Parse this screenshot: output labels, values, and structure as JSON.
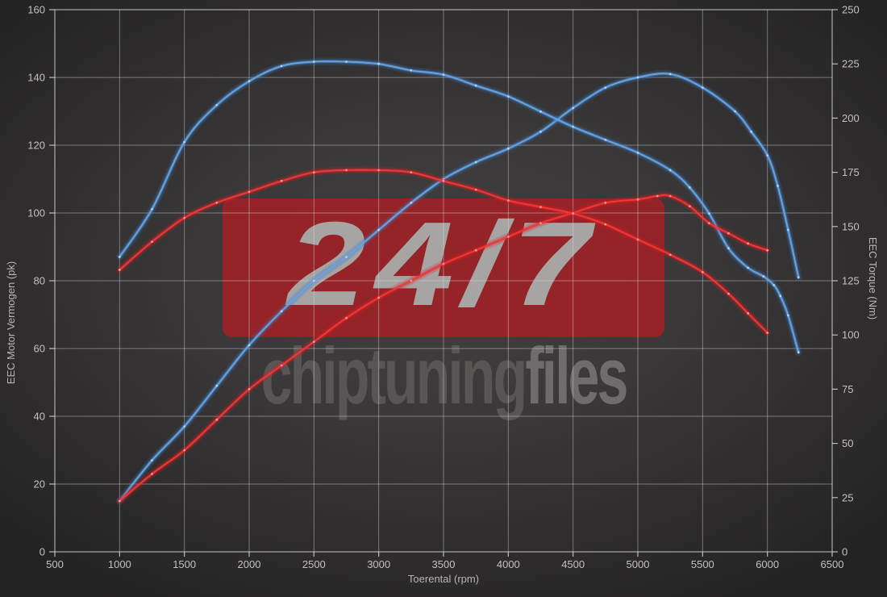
{
  "watermark": {
    "badge": "24/7",
    "brand_bold": "chiptuning",
    "brand_light": "files"
  },
  "chart_data": {
    "type": "line",
    "title": "",
    "xlabel": "Toerental (rpm)",
    "ylabel_left": "EEC Motor Vermogen (pk)",
    "ylabel_right": "EEC Torque (Nm)",
    "x_range": [
      500,
      6500
    ],
    "y_left_range": [
      0,
      160
    ],
    "y_right_range": [
      0,
      250
    ],
    "x_ticks": [
      500,
      1000,
      1500,
      2000,
      2500,
      3000,
      3500,
      4000,
      4500,
      5000,
      5500,
      6000,
      6500
    ],
    "y_left_ticks": [
      0,
      20,
      40,
      60,
      80,
      100,
      120,
      140,
      160
    ],
    "y_right_ticks": [
      0,
      25,
      50,
      75,
      100,
      125,
      150,
      175,
      200,
      225,
      250
    ],
    "grid": true,
    "legend": "none",
    "colors": {
      "tuned": "#4f94d8",
      "original": "#e52525"
    },
    "series": [
      {
        "id": "vermogen-tuned",
        "axis": "left",
        "unit": "pk",
        "color_key": "tuned",
        "points": [
          [
            1000,
            15
          ],
          [
            1250,
            27
          ],
          [
            1500,
            37
          ],
          [
            1750,
            49
          ],
          [
            2000,
            61
          ],
          [
            2250,
            71
          ],
          [
            2500,
            80
          ],
          [
            2750,
            87
          ],
          [
            3000,
            95
          ],
          [
            3250,
            103
          ],
          [
            3500,
            110
          ],
          [
            3750,
            115
          ],
          [
            4000,
            119
          ],
          [
            4250,
            124
          ],
          [
            4500,
            131
          ],
          [
            4750,
            137
          ],
          [
            5000,
            140
          ],
          [
            5250,
            141
          ],
          [
            5500,
            137
          ],
          [
            5750,
            130
          ],
          [
            5875,
            124
          ],
          [
            6000,
            117
          ],
          [
            6080,
            108
          ],
          [
            6160,
            95
          ],
          [
            6240,
            81
          ]
        ]
      },
      {
        "id": "torque-tuned",
        "axis": "right",
        "unit": "Nm",
        "color_key": "tuned",
        "points": [
          [
            1000,
            136
          ],
          [
            1250,
            158
          ],
          [
            1500,
            189
          ],
          [
            1750,
            206
          ],
          [
            2000,
            217
          ],
          [
            2250,
            224
          ],
          [
            2500,
            226
          ],
          [
            2750,
            226
          ],
          [
            3000,
            225
          ],
          [
            3250,
            222
          ],
          [
            3500,
            220
          ],
          [
            3750,
            215
          ],
          [
            4000,
            210
          ],
          [
            4250,
            203
          ],
          [
            4500,
            196
          ],
          [
            4750,
            190
          ],
          [
            5000,
            184
          ],
          [
            5250,
            176
          ],
          [
            5400,
            168
          ],
          [
            5550,
            156
          ],
          [
            5700,
            140
          ],
          [
            5850,
            131
          ],
          [
            5970,
            127
          ],
          [
            6050,
            123
          ],
          [
            6100,
            118
          ],
          [
            6160,
            109
          ],
          [
            6240,
            92
          ]
        ]
      },
      {
        "id": "vermogen-original",
        "axis": "left",
        "unit": "pk",
        "color_key": "original",
        "points": [
          [
            1000,
            15
          ],
          [
            1250,
            23
          ],
          [
            1500,
            30
          ],
          [
            1750,
            39
          ],
          [
            2000,
            48
          ],
          [
            2250,
            55
          ],
          [
            2500,
            62
          ],
          [
            2750,
            69
          ],
          [
            3000,
            75
          ],
          [
            3250,
            80
          ],
          [
            3500,
            85
          ],
          [
            3750,
            89
          ],
          [
            4000,
            93
          ],
          [
            4250,
            97
          ],
          [
            4500,
            100
          ],
          [
            4750,
            103
          ],
          [
            5000,
            104
          ],
          [
            5150,
            105
          ],
          [
            5250,
            105
          ],
          [
            5400,
            102
          ],
          [
            5550,
            97
          ],
          [
            5700,
            94
          ],
          [
            5850,
            91
          ],
          [
            6000,
            89
          ]
        ]
      },
      {
        "id": "torque-original",
        "axis": "right",
        "unit": "Nm",
        "color_key": "original",
        "points": [
          [
            1000,
            130
          ],
          [
            1250,
            143
          ],
          [
            1500,
            154
          ],
          [
            1750,
            161
          ],
          [
            2000,
            166
          ],
          [
            2250,
            171
          ],
          [
            2500,
            175
          ],
          [
            2750,
            176
          ],
          [
            3000,
            176
          ],
          [
            3250,
            175
          ],
          [
            3500,
            171
          ],
          [
            3750,
            167
          ],
          [
            4000,
            162
          ],
          [
            4250,
            159
          ],
          [
            4500,
            156
          ],
          [
            4750,
            151
          ],
          [
            5000,
            144
          ],
          [
            5250,
            137
          ],
          [
            5500,
            129
          ],
          [
            5700,
            119
          ],
          [
            5850,
            110
          ],
          [
            6000,
            101
          ]
        ]
      }
    ]
  }
}
